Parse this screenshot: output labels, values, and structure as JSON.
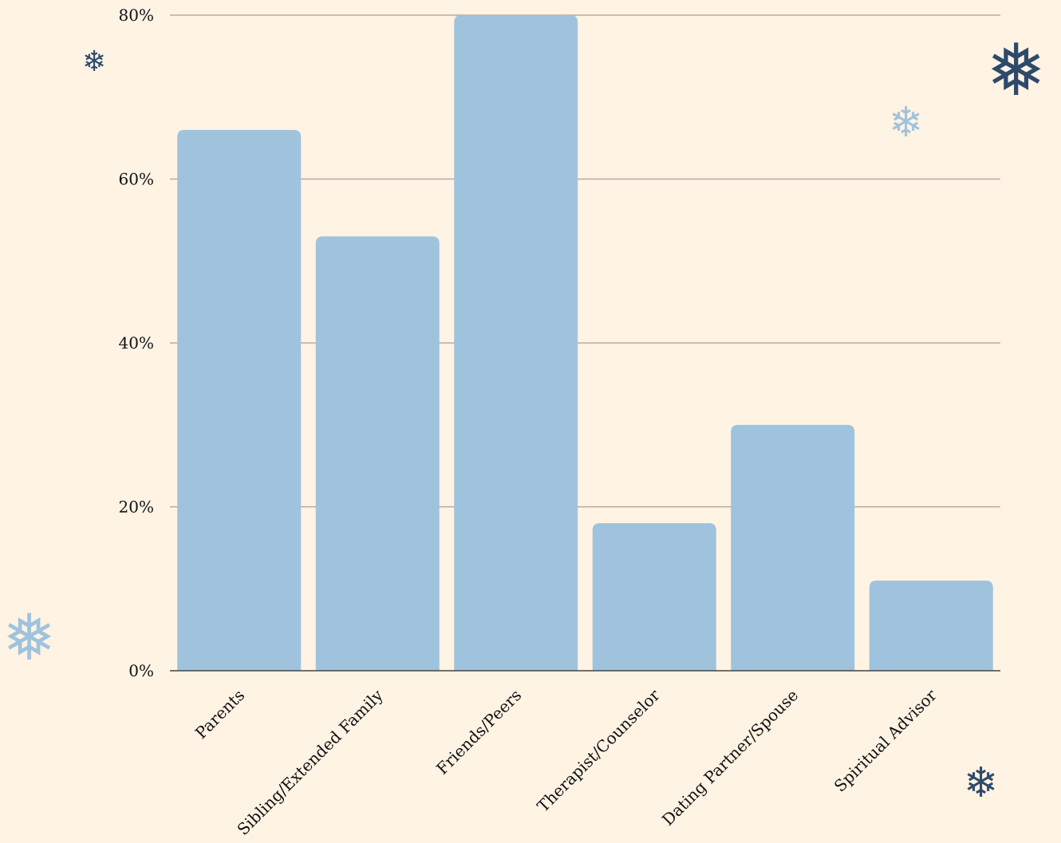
{
  "colors": {
    "background": "#FFF3E4",
    "bar": "#9FC3DC",
    "grid": "#A89E93",
    "axis": "#444444",
    "text": "#111111",
    "snowflake_dark": "#2E4A6B",
    "snowflake_light": "#9FC3DC"
  },
  "chart_data": {
    "type": "bar",
    "title": "",
    "xlabel": "",
    "ylabel": "",
    "categories": [
      "Parents",
      "Sibling/Extended Family",
      "Friends/Peers",
      "Therapist/Counselor",
      "Dating Partner/Spouse",
      "Spiritual Advisor"
    ],
    "values": [
      66,
      53,
      80,
      18,
      30,
      11
    ],
    "ylim": [
      0,
      80
    ],
    "yticks": [
      0,
      20,
      40,
      60,
      80
    ],
    "ytick_labels": [
      "0%",
      "20%",
      "40%",
      "60%",
      "80%"
    ],
    "grid": true,
    "legend": "none"
  },
  "decorations": [
    {
      "icon": "snowflake-icon",
      "glyph": "❄",
      "color": "#2E4A6B"
    },
    {
      "icon": "snowflake-icon",
      "glyph": "❅",
      "color": "#2E4A6B"
    },
    {
      "icon": "snowflake-icon",
      "glyph": "❄",
      "color": "#9FC3DC"
    },
    {
      "icon": "snowflake-icon",
      "glyph": "❅",
      "color": "#9FC3DC"
    },
    {
      "icon": "snowflake-icon",
      "glyph": "❄",
      "color": "#2E4A6B"
    }
  ]
}
